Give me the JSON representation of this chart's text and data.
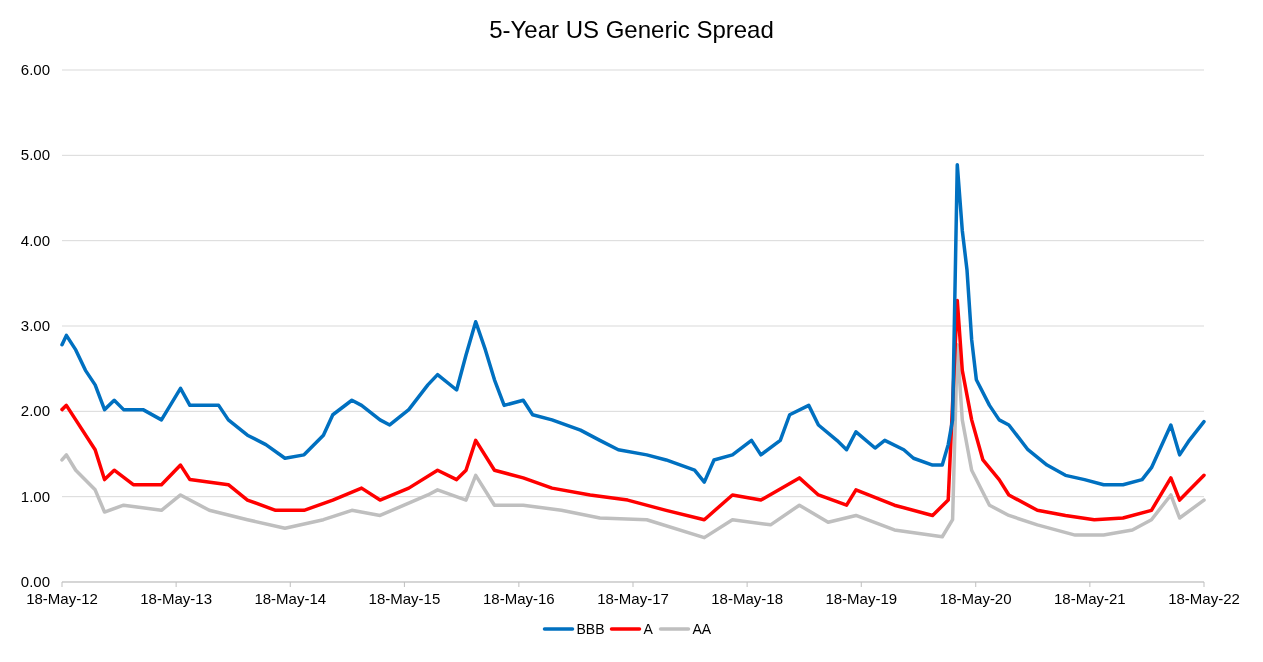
{
  "chart_data": {
    "type": "line",
    "title": "5-Year US Generic Spread",
    "legend": "bottom",
    "grid": "y",
    "marker": "none",
    "line_style": "solid",
    "xlim": [
      "2012-05-18",
      "2022-05-18"
    ],
    "xticks": [
      {
        "value": "2012-05-18",
        "label": "18-May-12"
      },
      {
        "value": "2013-05-18",
        "label": "18-May-13"
      },
      {
        "value": "2014-05-18",
        "label": "18-May-14"
      },
      {
        "value": "2015-05-18",
        "label": "18-May-15"
      },
      {
        "value": "2016-05-18",
        "label": "18-May-16"
      },
      {
        "value": "2017-05-18",
        "label": "18-May-17"
      },
      {
        "value": "2018-05-18",
        "label": "18-May-18"
      },
      {
        "value": "2019-05-18",
        "label": "18-May-19"
      },
      {
        "value": "2020-05-18",
        "label": "18-May-20"
      },
      {
        "value": "2021-05-18",
        "label": "18-May-21"
      },
      {
        "value": "2022-05-18",
        "label": "18-May-22"
      }
    ],
    "ylim": [
      0,
      6
    ],
    "yticks": [
      {
        "value": 0,
        "label": "0.00"
      },
      {
        "value": 1,
        "label": "1.00"
      },
      {
        "value": 2,
        "label": "2.00"
      },
      {
        "value": 3,
        "label": "3.00"
      },
      {
        "value": 4,
        "label": "4.00"
      },
      {
        "value": 5,
        "label": "5.00"
      },
      {
        "value": 6,
        "label": "6.00"
      }
    ],
    "series": [
      {
        "name": "BBB",
        "color": "#0070c0",
        "x": [
          "2012-05-18",
          "2012-06",
          "2012-07",
          "2012-08",
          "2012-09",
          "2012-10",
          "2012-11",
          "2012-12",
          "2013-02",
          "2013-04",
          "2013-06",
          "2013-07",
          "2013-10",
          "2013-11",
          "2014-01",
          "2014-03",
          "2014-05",
          "2014-07",
          "2014-09",
          "2014-10",
          "2014-12",
          "2015-01",
          "2015-03",
          "2015-04",
          "2015-06",
          "2015-08",
          "2015-09",
          "2015-11",
          "2015-12",
          "2016-01",
          "2016-02",
          "2016-03",
          "2016-04",
          "2016-06",
          "2016-07",
          "2016-09",
          "2016-12",
          "2017-02",
          "2017-04",
          "2017-07",
          "2017-09",
          "2017-12",
          "2018-01",
          "2018-02",
          "2018-04",
          "2018-06",
          "2018-07",
          "2018-09",
          "2018-10",
          "2018-12",
          "2019-01",
          "2019-03",
          "2019-04",
          "2019-05",
          "2019-07",
          "2019-08",
          "2019-10",
          "2019-11",
          "2020-01",
          "2020-02",
          "2020-02-20",
          "2020-03-05",
          "2020-03-20",
          "2020-04-05",
          "2020-04-20",
          "2020-05-05",
          "2020-05-20",
          "2020-07",
          "2020-08",
          "2020-09",
          "2020-11",
          "2021-01",
          "2021-03",
          "2021-05",
          "2021-07",
          "2021-09",
          "2021-11",
          "2021-12",
          "2022-02",
          "2022-03",
          "2022-04",
          "2022-05-18"
        ],
        "values": [
          2.78,
          2.89,
          2.72,
          2.48,
          2.31,
          2.02,
          2.13,
          2.02,
          2.02,
          1.9,
          2.27,
          2.07,
          2.07,
          1.9,
          1.72,
          1.61,
          1.45,
          1.49,
          1.72,
          1.96,
          2.13,
          2.07,
          1.9,
          1.84,
          2.02,
          2.31,
          2.43,
          2.25,
          2.66,
          3.05,
          2.72,
          2.37,
          2.07,
          2.13,
          1.96,
          1.9,
          1.78,
          1.66,
          1.55,
          1.49,
          1.43,
          1.31,
          1.17,
          1.43,
          1.49,
          1.66,
          1.49,
          1.66,
          1.96,
          2.07,
          1.84,
          1.66,
          1.55,
          1.76,
          1.57,
          1.66,
          1.55,
          1.45,
          1.37,
          1.37,
          1.61,
          1.9,
          4.89,
          4.12,
          3.66,
          2.84,
          2.37,
          2.07,
          1.9,
          1.84,
          1.55,
          1.37,
          1.25,
          1.2,
          1.14,
          1.14,
          1.2,
          1.34,
          1.84,
          1.49,
          1.66,
          1.88
        ]
      },
      {
        "name": "A",
        "color": "#ff0000",
        "x": [
          "2012-05-18",
          "2012-06",
          "2012-07",
          "2012-09",
          "2012-10",
          "2012-11",
          "2013-01",
          "2013-04",
          "2013-06",
          "2013-07",
          "2013-11",
          "2014-01",
          "2014-04",
          "2014-07",
          "2014-10",
          "2015-01",
          "2015-03",
          "2015-06",
          "2015-09",
          "2015-11",
          "2015-12",
          "2016-01",
          "2016-03",
          "2016-06",
          "2016-09",
          "2017-01",
          "2017-05",
          "2017-09",
          "2018-01",
          "2018-04",
          "2018-07",
          "2018-11",
          "2019-01",
          "2019-04",
          "2019-05",
          "2019-09",
          "2020-01",
          "2020-02-20",
          "2020-03-20",
          "2020-04-05",
          "2020-05-05",
          "2020-06-10",
          "2020-08",
          "2020-09",
          "2020-12",
          "2021-03",
          "2021-06",
          "2021-09",
          "2021-12",
          "2022-02",
          "2022-03",
          "2022-05-18"
        ],
        "values": [
          2.02,
          2.07,
          1.9,
          1.55,
          1.2,
          1.31,
          1.14,
          1.14,
          1.37,
          1.2,
          1.14,
          0.96,
          0.84,
          0.84,
          0.96,
          1.1,
          0.96,
          1.1,
          1.31,
          1.2,
          1.31,
          1.66,
          1.31,
          1.22,
          1.1,
          1.02,
          0.96,
          0.84,
          0.73,
          1.02,
          0.96,
          1.22,
          1.02,
          0.9,
          1.08,
          0.9,
          0.78,
          0.96,
          3.3,
          2.48,
          1.9,
          1.43,
          1.2,
          1.02,
          0.84,
          0.78,
          0.73,
          0.75,
          0.84,
          1.22,
          0.96,
          1.25
        ]
      },
      {
        "name": "AA",
        "color": "#bfbfbf",
        "x": [
          "2012-05-18",
          "2012-06",
          "2012-07",
          "2012-09",
          "2012-10",
          "2012-12",
          "2013-04",
          "2013-06",
          "2013-09",
          "2014-01",
          "2014-05",
          "2014-09",
          "2014-12",
          "2015-03",
          "2015-08",
          "2015-09",
          "2015-12",
          "2016-01",
          "2016-03",
          "2016-06",
          "2016-10",
          "2017-02",
          "2017-07",
          "2018-01",
          "2018-04",
          "2018-08",
          "2018-11",
          "2019-02",
          "2019-05",
          "2019-09",
          "2020-02",
          "2020-03-05",
          "2020-03-20",
          "2020-04-05",
          "2020-05-05",
          "2020-07",
          "2020-09",
          "2020-12",
          "2021-04",
          "2021-07",
          "2021-10",
          "2021-12",
          "2022-02",
          "2022-03",
          "2022-05-18"
        ],
        "values": [
          1.43,
          1.49,
          1.31,
          1.08,
          0.82,
          0.9,
          0.84,
          1.02,
          0.84,
          0.73,
          0.63,
          0.73,
          0.84,
          0.78,
          1.02,
          1.08,
          0.96,
          1.25,
          0.9,
          0.9,
          0.84,
          0.75,
          0.73,
          0.52,
          0.73,
          0.67,
          0.9,
          0.7,
          0.78,
          0.61,
          0.53,
          0.73,
          2.78,
          1.9,
          1.31,
          0.9,
          0.78,
          0.67,
          0.55,
          0.55,
          0.61,
          0.73,
          1.02,
          0.75,
          0.96
        ]
      }
    ]
  }
}
